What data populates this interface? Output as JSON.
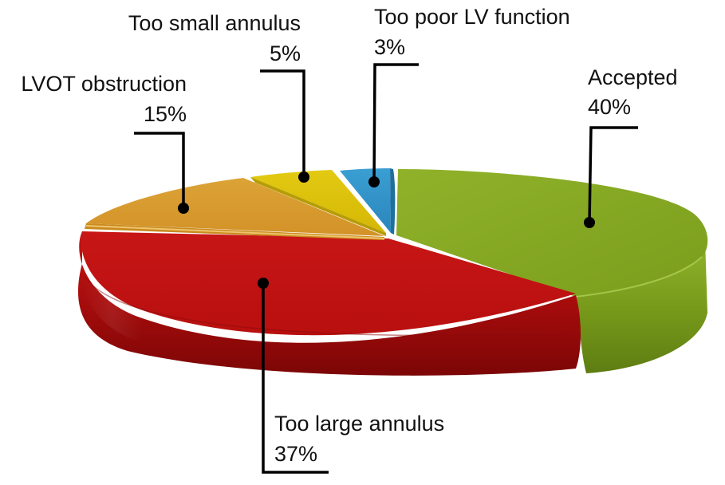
{
  "chart_data": {
    "type": "pie",
    "title": "",
    "style": "3d-exploded",
    "slices": [
      {
        "label": "Accepted",
        "value": 40,
        "display": "40%",
        "color": "#86a823"
      },
      {
        "label": "Too large annulus",
        "value": 37,
        "display": "37%",
        "color": "#c01212"
      },
      {
        "label": "LVOT obstruction",
        "value": 15,
        "display": "15%",
        "color": "#d89b2c"
      },
      {
        "label": "Too small annulus",
        "value": 5,
        "display": "5%",
        "color": "#dcc20a"
      },
      {
        "label": "Too poor LV function",
        "value": 3,
        "display": "3%",
        "color": "#2f93c9"
      }
    ]
  }
}
